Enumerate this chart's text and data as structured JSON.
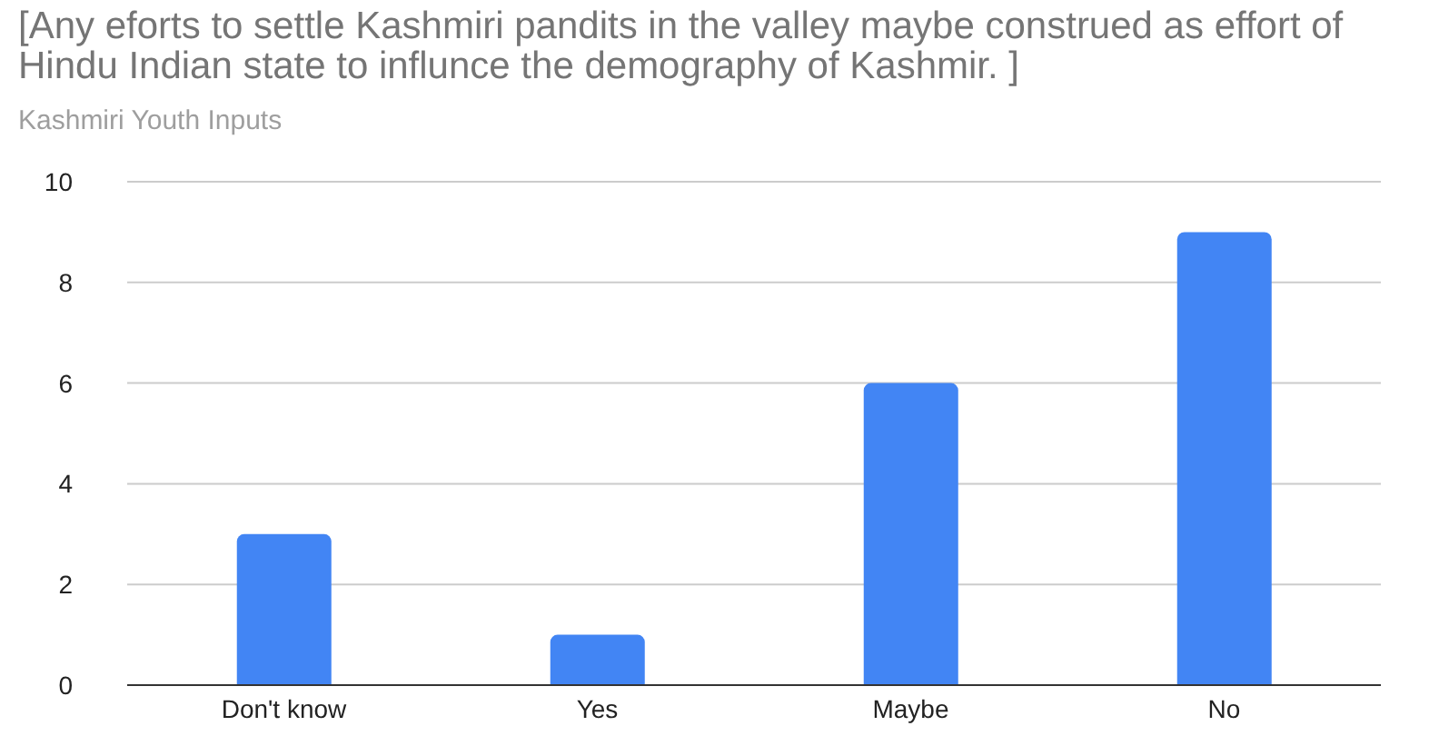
{
  "chart_data": {
    "type": "bar",
    "title": "[Any eforts to settle Kashmiri pandits in the valley maybe construed as effort of Hindu Indian state to influnce the demography of Kashmir. ]",
    "subtitle": "Kashmiri Youth Inputs",
    "categories": [
      "Don't know",
      "Yes",
      "Maybe",
      "No"
    ],
    "values": [
      3,
      1,
      6,
      9
    ],
    "color": "#4285f4",
    "ylim": [
      0,
      10
    ],
    "yticks": [
      0,
      2,
      4,
      6,
      8,
      10
    ],
    "grid": "y"
  }
}
